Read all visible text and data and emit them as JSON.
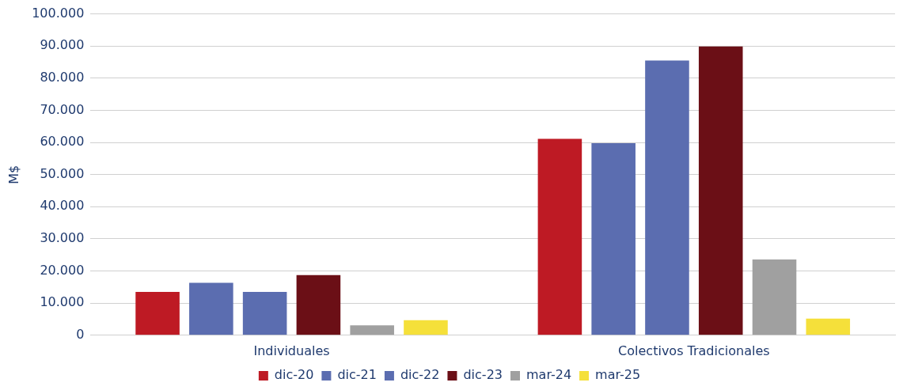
{
  "chart_data": {
    "type": "bar",
    "ylabel": "M$",
    "categories": [
      "Individuales",
      "Colectivos Tradicionales"
    ],
    "series": [
      {
        "name": "dic-20",
        "color": "#be1a24",
        "values": [
          13500,
          61100
        ]
      },
      {
        "name": "dic-21",
        "color": "#5b6db0",
        "values": [
          16300,
          59800
        ]
      },
      {
        "name": "dic-22",
        "color": "#5b6db0",
        "values": [
          13500,
          85500
        ]
      },
      {
        "name": "dic-23",
        "color": "#6b0f16",
        "values": [
          18700,
          89900
        ]
      },
      {
        "name": "mar-24",
        "color": "#a0a0a0",
        "values": [
          3100,
          23600
        ]
      },
      {
        "name": "mar-25",
        "color": "#f5e03a",
        "values": [
          4700,
          5200
        ]
      }
    ],
    "ylim": [
      0,
      100000
    ],
    "yticks": [
      {
        "value": 0,
        "label": "0"
      },
      {
        "value": 10000,
        "label": "10.000"
      },
      {
        "value": 20000,
        "label": "20.000"
      },
      {
        "value": 30000,
        "label": "30.000"
      },
      {
        "value": 40000,
        "label": "40.000"
      },
      {
        "value": 50000,
        "label": "50.000"
      },
      {
        "value": 60000,
        "label": "60.000"
      },
      {
        "value": 70000,
        "label": "70.000"
      },
      {
        "value": 80000,
        "label": "80.000"
      },
      {
        "value": 90000,
        "label": "90.000"
      },
      {
        "value": 100000,
        "label": "100.000"
      }
    ],
    "grid": "y",
    "legend": "bottom"
  }
}
